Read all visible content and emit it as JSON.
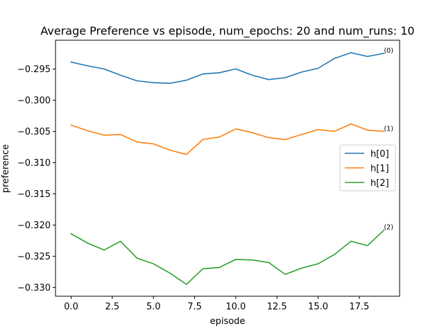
{
  "chart_data": {
    "type": "line",
    "title": "Average Preference vs episode, num_epochs: 20 and num_runs: 10",
    "xlabel": "episode",
    "ylabel": "preference",
    "xlim": [
      -0.95,
      19.95
    ],
    "ylim": [
      -0.3314,
      -0.2904
    ],
    "xticks": [
      0.0,
      2.5,
      5.0,
      7.5,
      10.0,
      12.5,
      15.0,
      17.5
    ],
    "xtick_labels": [
      "0.0",
      "2.5",
      "5.0",
      "7.5",
      "10.0",
      "12.5",
      "15.0",
      "17.5"
    ],
    "yticks": [
      -0.295,
      -0.3,
      -0.305,
      -0.31,
      -0.315,
      -0.32,
      -0.325,
      -0.33
    ],
    "ytick_labels": [
      "−0.295",
      "−0.300",
      "−0.305",
      "−0.310",
      "−0.315",
      "−0.320",
      "−0.325",
      "−0.330"
    ],
    "grid": false,
    "legend_position": "center-right",
    "x": [
      0,
      1,
      2,
      3,
      4,
      5,
      6,
      7,
      8,
      9,
      10,
      11,
      12,
      13,
      14,
      15,
      16,
      17,
      18,
      19
    ],
    "series": [
      {
        "name": "h[0]",
        "color": "#1f77b4",
        "annotation": "(0)",
        "values": [
          -0.2939,
          -0.2945,
          -0.295,
          -0.296,
          -0.2969,
          -0.2972,
          -0.2973,
          -0.2968,
          -0.2958,
          -0.2956,
          -0.295,
          -0.296,
          -0.2967,
          -0.2964,
          -0.2955,
          -0.2949,
          -0.2933,
          -0.2924,
          -0.293,
          -0.2925
        ]
      },
      {
        "name": "h[1]",
        "color": "#ff7f0e",
        "annotation": "(1)",
        "values": [
          -0.304,
          -0.3049,
          -0.3056,
          -0.3055,
          -0.3067,
          -0.307,
          -0.308,
          -0.3087,
          -0.3063,
          -0.3059,
          -0.3046,
          -0.3052,
          -0.306,
          -0.3063,
          -0.3055,
          -0.3047,
          -0.305,
          -0.3038,
          -0.3048,
          -0.305
        ]
      },
      {
        "name": "h[2]",
        "color": "#2ca02c",
        "annotation": "(2)",
        "values": [
          -0.3214,
          -0.3229,
          -0.324,
          -0.3226,
          -0.3253,
          -0.3262,
          -0.3277,
          -0.3295,
          -0.327,
          -0.3268,
          -0.3255,
          -0.3256,
          -0.326,
          -0.3279,
          -0.3269,
          -0.3262,
          -0.3247,
          -0.3226,
          -0.3233,
          -0.3208
        ]
      }
    ]
  }
}
